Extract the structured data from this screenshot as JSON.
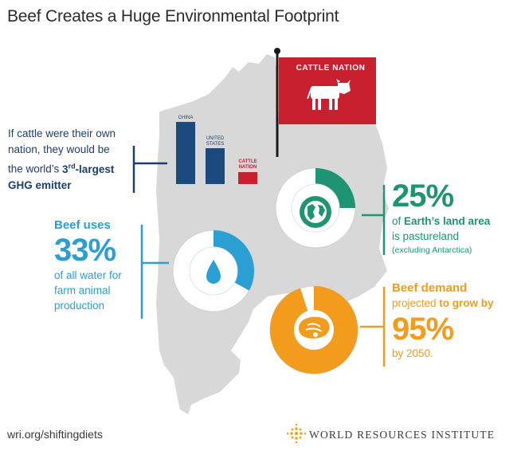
{
  "title": "Beef Creates a Huge Environmental Footprint",
  "flag": {
    "label": "CATTLE NATION"
  },
  "ghg": {
    "bars": [
      {
        "label": "CHINA",
        "color": "#1d4a7e"
      },
      {
        "label": "UNITED STATES",
        "color": "#1d4a7e"
      },
      {
        "label": "CATTLE NATION",
        "color": "#c8202f"
      }
    ],
    "text_line1": "If cattle were their own",
    "text_line2": "nation, they would be",
    "text_line3_pre": "the world’s ",
    "rank_num": "3",
    "rank_sup": "rd",
    "rank_post": "-largest",
    "text_line4": "GHG emitter"
  },
  "water": {
    "lead": "Beef uses",
    "value": "33%",
    "rest_line1": "of all water for",
    "rest_line2": "farm animal",
    "rest_line3": "production",
    "fraction": 0.33,
    "color": "#2b9fd3",
    "icon": "water-drop-icon"
  },
  "land": {
    "value": "25%",
    "line1_pre": "of ",
    "line1_bold": "Earth’s land area",
    "line2": "is pastureland",
    "note": "(excluding Antarctica)",
    "fraction": 0.25,
    "color": "#1f9473",
    "icon": "globe-icon"
  },
  "demand": {
    "lead": "Beef demand",
    "line2_pre": "projected ",
    "line2_bold": "to grow by",
    "value": "95%",
    "line3": "by 2050.",
    "fraction": 0.95,
    "color": "#f29b1d",
    "icon": "steak-icon"
  },
  "footer": {
    "url": "wri.org/shiftingdiets",
    "org": "WORLD RESOURCES INSTITUTE"
  },
  "colors": {
    "map": "#d8d8d8",
    "navy": "#1d4a7e",
    "red": "#c8202f"
  }
}
